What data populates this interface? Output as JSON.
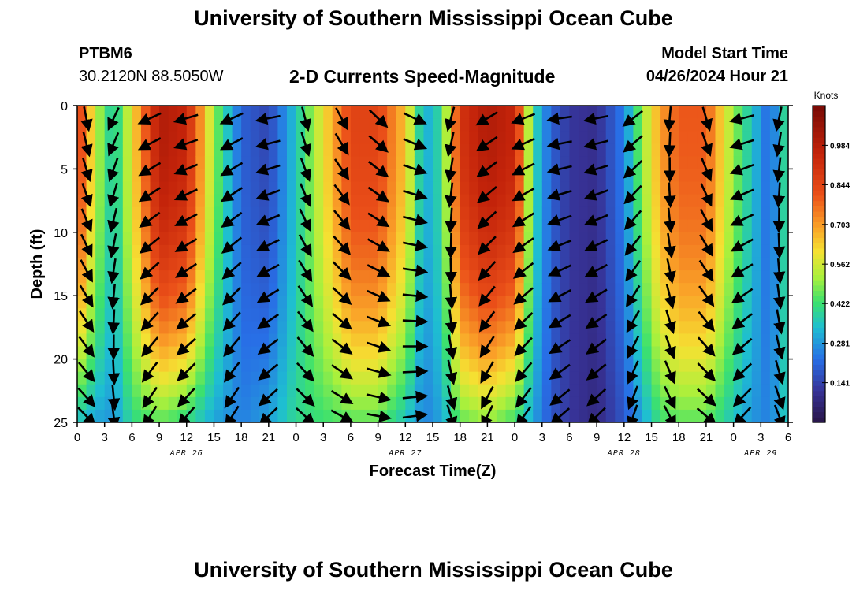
{
  "header": {
    "title": "University of Southern Mississippi Ocean Cube",
    "station": "PTBM6",
    "coords": "30.2120N  88.5050W",
    "subtitle": "2-D Currents Speed-Magnitude",
    "model_label": "Model Start Time",
    "model_time": "04/26/2024 Hour 21"
  },
  "footer": {
    "title": "University of Southern Mississippi Ocean Cube"
  },
  "chart_data": {
    "type": "heatmap",
    "title": "2-D Currents Speed-Magnitude",
    "xlabel": "Forecast Time(Z)",
    "ylabel": "Depth (ft)",
    "colorbar_label": "Knots",
    "colorbar_ticks": [
      "0.984",
      "0.844",
      "0.703",
      "0.562",
      "0.422",
      "0.281",
      "0.141"
    ],
    "colorbar_values": [
      0.984,
      0.844,
      0.703,
      0.562,
      0.422,
      0.281,
      0.141
    ],
    "speed_range": [
      0.0,
      1.125
    ],
    "ylim": [
      0,
      25
    ],
    "ytick_labels": [
      "0",
      "5",
      "10",
      "15",
      "20",
      "25"
    ],
    "xlim_hours": [
      0,
      78
    ],
    "xtick_labels": [
      "0",
      "3",
      "6",
      "9",
      "12",
      "15",
      "18",
      "21",
      "0",
      "3",
      "6",
      "9",
      "12",
      "15",
      "18",
      "21",
      "0",
      "3",
      "6",
      "9",
      "12",
      "15",
      "18",
      "21",
      "0",
      "3",
      "6"
    ],
    "date_labels": [
      {
        "label": "APR 26",
        "hour": 12
      },
      {
        "label": "APR 27",
        "hour": 36
      },
      {
        "label": "APR 28",
        "hour": 60
      },
      {
        "label": "APR 29",
        "hour": 75
      }
    ],
    "speed_profile_surface": [
      [
        0,
        0.9
      ],
      [
        2,
        0.55
      ],
      [
        4,
        0.35
      ],
      [
        6,
        0.6
      ],
      [
        9,
        1.0
      ],
      [
        12,
        0.95
      ],
      [
        15,
        0.5
      ],
      [
        18,
        0.2
      ],
      [
        21,
        0.15
      ],
      [
        24,
        0.35
      ],
      [
        27,
        0.6
      ],
      [
        30,
        0.85
      ],
      [
        33,
        0.85
      ],
      [
        36,
        0.65
      ],
      [
        38,
        0.3
      ],
      [
        40,
        0.4
      ],
      [
        42,
        0.9
      ],
      [
        45,
        1.0
      ],
      [
        48,
        0.95
      ],
      [
        50,
        0.4
      ],
      [
        52,
        0.2
      ],
      [
        54,
        0.12
      ],
      [
        57,
        0.1
      ],
      [
        60,
        0.25
      ],
      [
        62,
        0.5
      ],
      [
        64,
        0.7
      ],
      [
        66,
        0.8
      ],
      [
        69,
        0.8
      ],
      [
        72,
        0.5
      ],
      [
        74,
        0.35
      ],
      [
        76,
        0.2
      ],
      [
        78,
        0.45
      ]
    ],
    "speed_profile_bottom": [
      [
        0,
        0.35
      ],
      [
        2,
        0.3
      ],
      [
        4,
        0.28
      ],
      [
        6,
        0.4
      ],
      [
        9,
        0.45
      ],
      [
        12,
        0.4
      ],
      [
        15,
        0.3
      ],
      [
        18,
        0.25
      ],
      [
        21,
        0.3
      ],
      [
        24,
        0.4
      ],
      [
        27,
        0.42
      ],
      [
        30,
        0.45
      ],
      [
        33,
        0.45
      ],
      [
        36,
        0.35
      ],
      [
        38,
        0.25
      ],
      [
        40,
        0.3
      ],
      [
        42,
        0.45
      ],
      [
        45,
        0.5
      ],
      [
        48,
        0.42
      ],
      [
        50,
        0.3
      ],
      [
        52,
        0.18
      ],
      [
        54,
        0.12
      ],
      [
        57,
        0.08
      ],
      [
        60,
        0.18
      ],
      [
        62,
        0.3
      ],
      [
        64,
        0.42
      ],
      [
        66,
        0.45
      ],
      [
        69,
        0.45
      ],
      [
        72,
        0.35
      ],
      [
        74,
        0.28
      ],
      [
        76,
        0.25
      ],
      [
        78,
        0.38
      ]
    ],
    "vector_times_hours": [
      1,
      4,
      8,
      12,
      17,
      21,
      25,
      29,
      33,
      37,
      41,
      45,
      49,
      53,
      57,
      61,
      65,
      69,
      73,
      77
    ],
    "vector_depths_ft": [
      1,
      3,
      5,
      7,
      9,
      11,
      13,
      15,
      17,
      19,
      21,
      23,
      24.5
    ],
    "vector_direction_profile_deg": [
      [
        0,
        -70
      ],
      [
        3,
        -100
      ],
      [
        6,
        -150
      ],
      [
        9,
        -160
      ],
      [
        12,
        -165
      ],
      [
        15,
        -120
      ],
      [
        18,
        -175
      ],
      [
        21,
        -170
      ],
      [
        24,
        -80
      ],
      [
        27,
        -70
      ],
      [
        30,
        -60
      ],
      [
        33,
        -45
      ],
      [
        36,
        -20
      ],
      [
        39,
        -40
      ],
      [
        42,
        -140
      ],
      [
        45,
        -150
      ],
      [
        48,
        -155
      ],
      [
        51,
        -170
      ],
      [
        54,
        -175
      ],
      [
        57,
        -170
      ],
      [
        60,
        -160
      ],
      [
        63,
        -110
      ],
      [
        66,
        -90
      ],
      [
        69,
        -75
      ],
      [
        72,
        -165
      ],
      [
        75,
        -170
      ],
      [
        78,
        -70
      ]
    ]
  }
}
